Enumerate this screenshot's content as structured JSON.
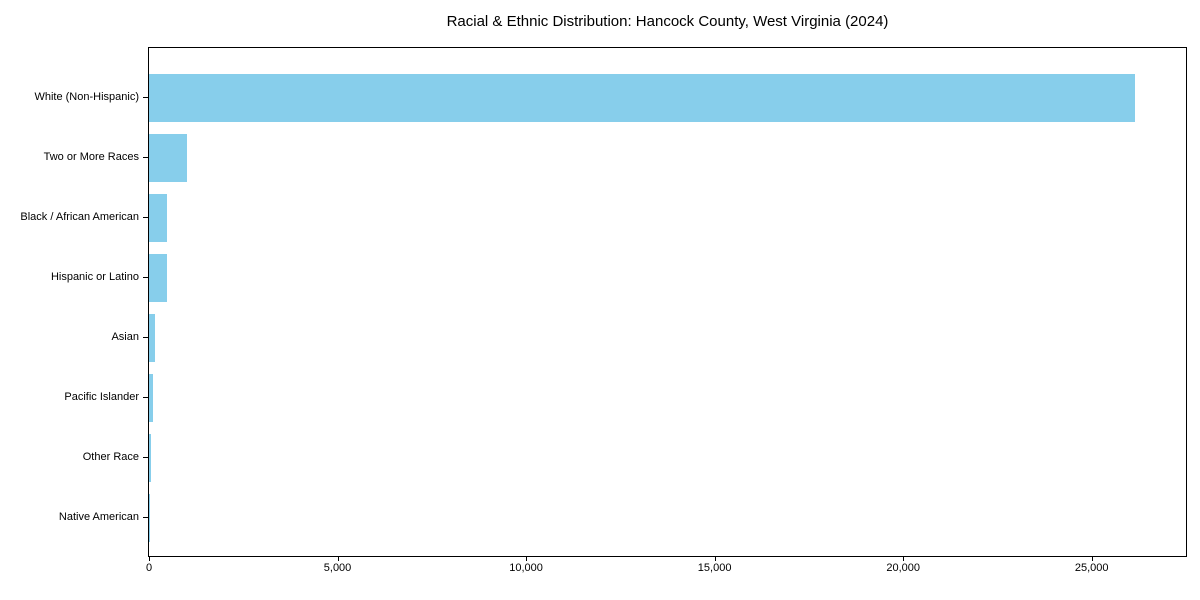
{
  "chart_data": {
    "type": "bar",
    "orientation": "horizontal",
    "title": "Racial & Ethnic Distribution: Hancock County, West Virginia (2024)",
    "categories": [
      "White (Non-Hispanic)",
      "Two or More Races",
      "Black / African American",
      "Hispanic or Latino",
      "Asian",
      "Pacific Islander",
      "Other Race",
      "Native American"
    ],
    "values": [
      26150,
      1000,
      480,
      480,
      160,
      110,
      40,
      10
    ],
    "xlabel": "",
    "ylabel": "",
    "xlim": [
      0,
      27500
    ],
    "x_tick_values": [
      0,
      5000,
      10000,
      15000,
      20000,
      25000
    ],
    "x_tick_labels": [
      "0",
      "5,000",
      "10,000",
      "15,000",
      "20,000",
      "25,000"
    ],
    "grid": false,
    "legend_position": "none",
    "sort_order": "descending"
  },
  "colors": {
    "bar": "#87ceeb",
    "text": "#000000",
    "spine": "#000000",
    "background": "#ffffff"
  }
}
